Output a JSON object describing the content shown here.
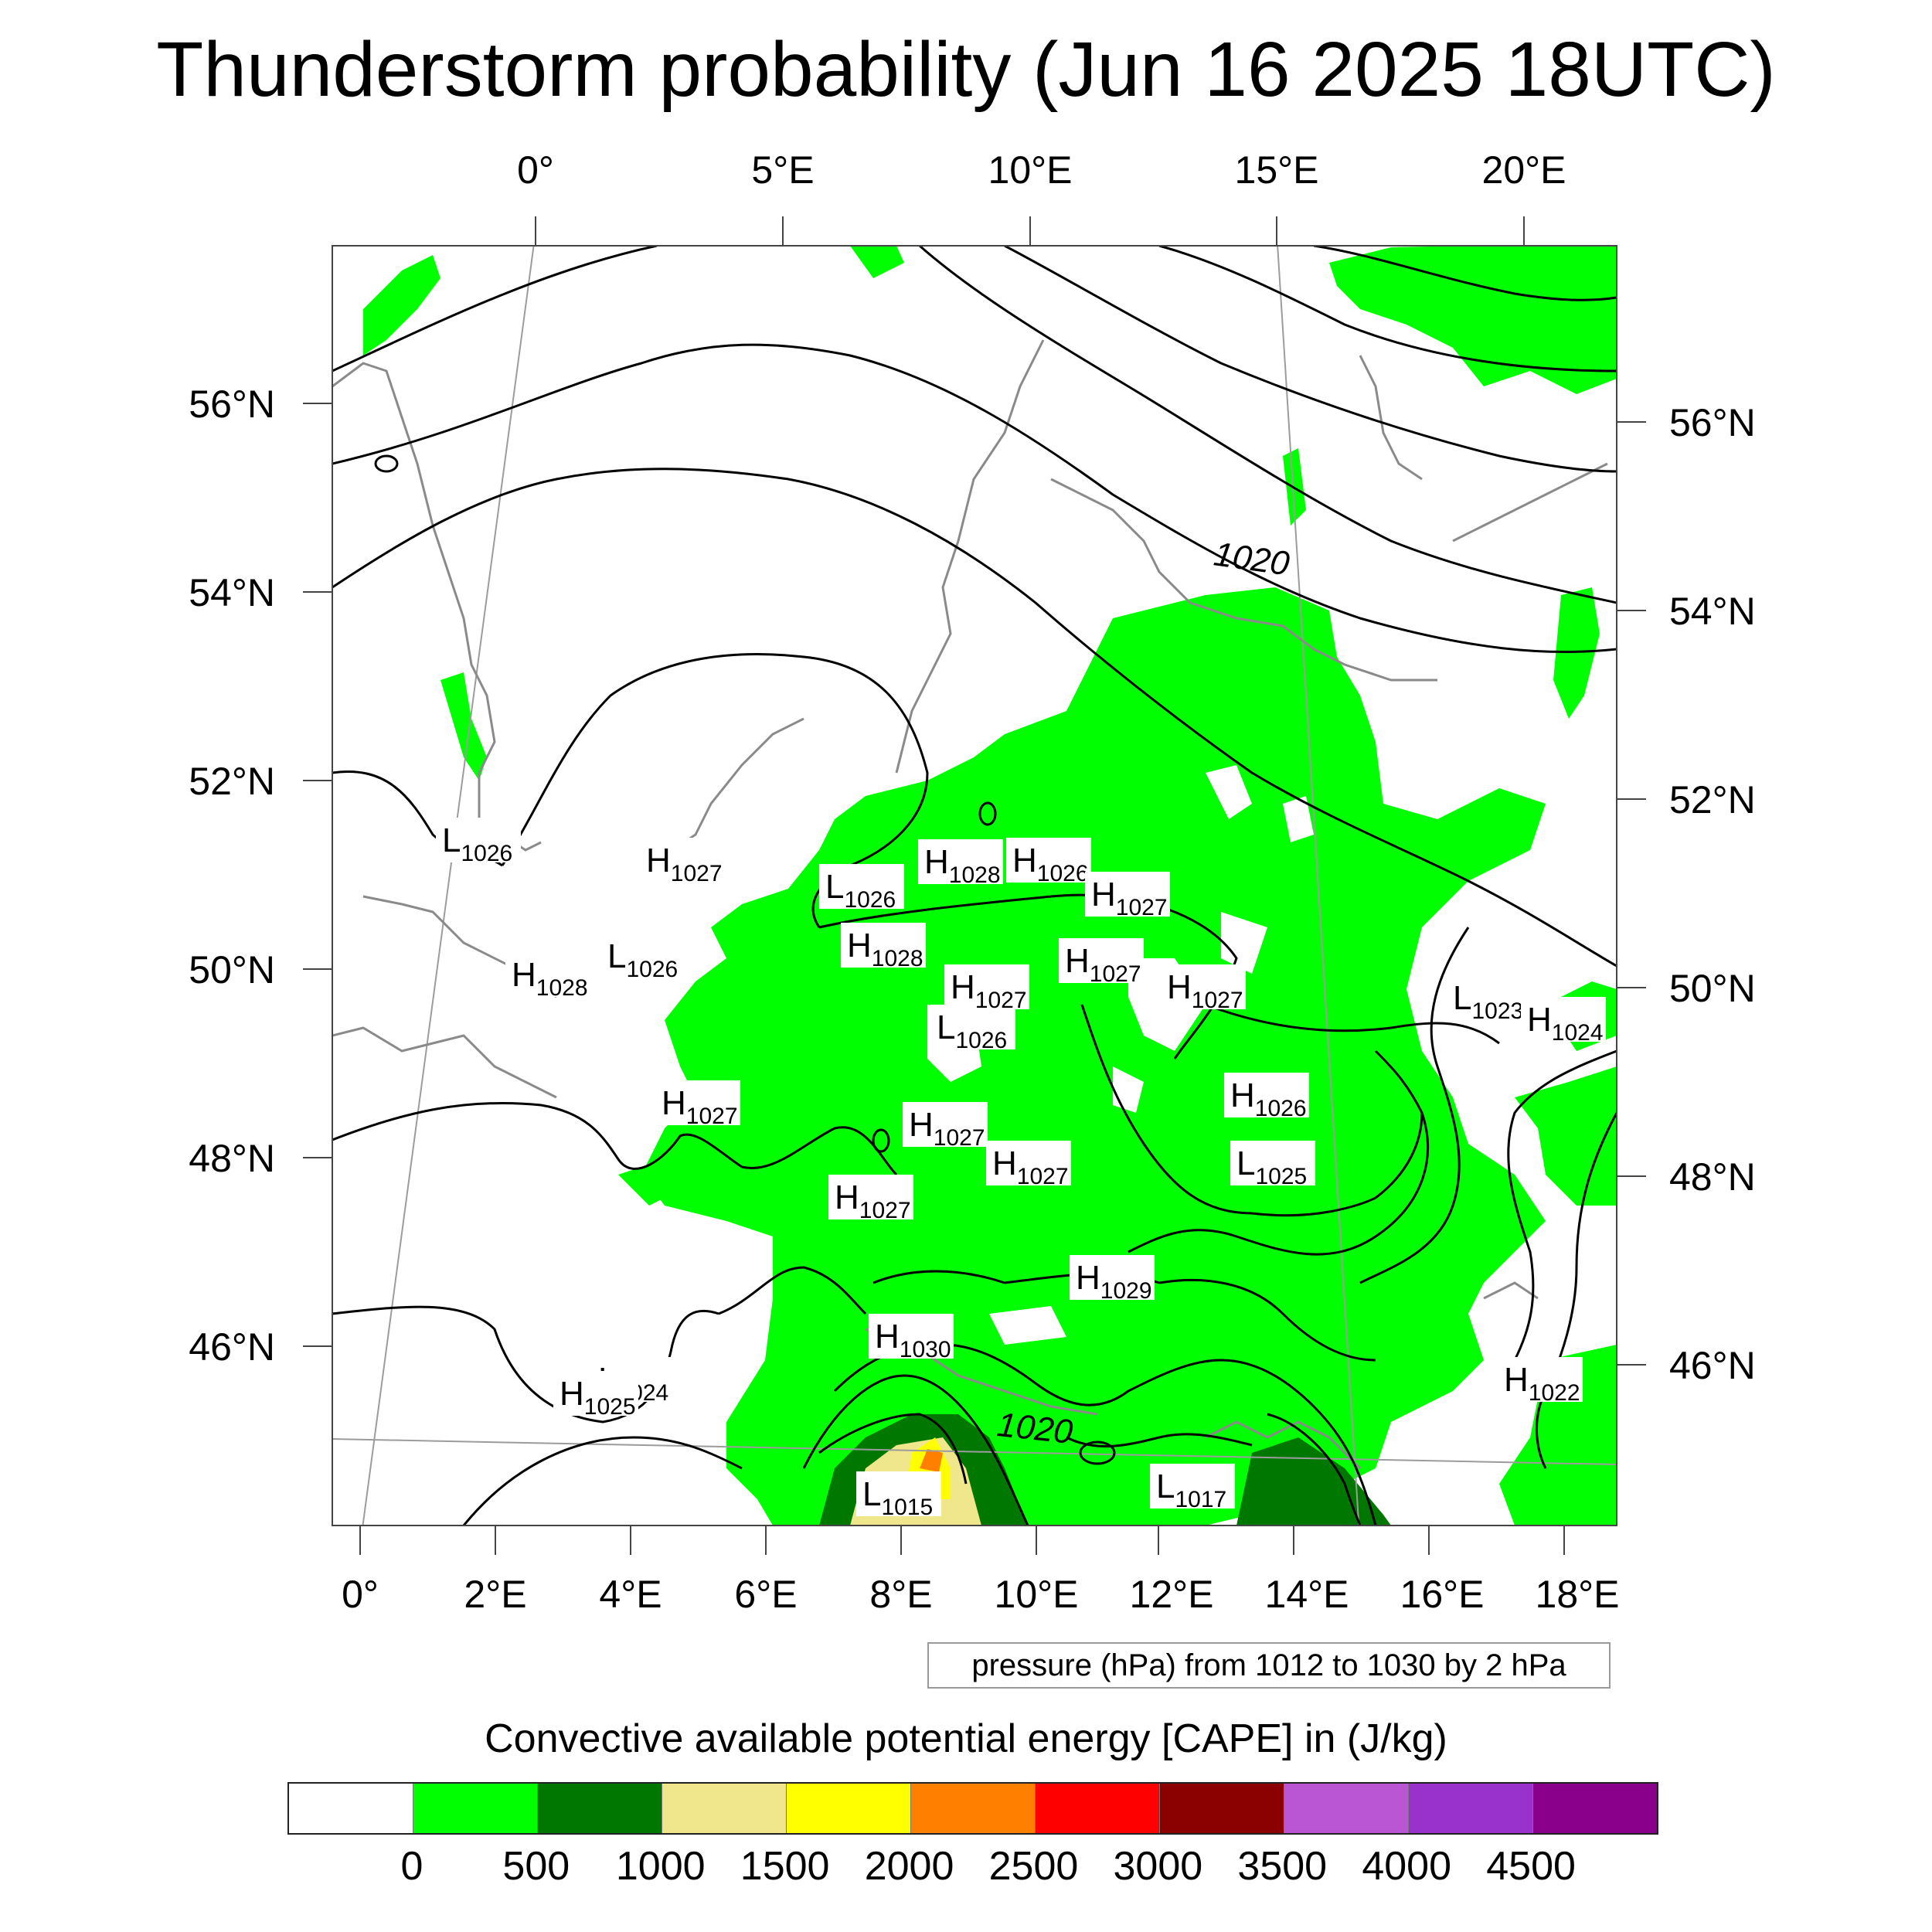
{
  "title": "Thunderstorm probability (Jun 16 2025 18UTC)",
  "map": {
    "top_lon_labels": [
      "0°",
      "5°E",
      "10°E",
      "15°E",
      "20°E"
    ],
    "bottom_lon_labels": [
      "0°",
      "2°E",
      "4°E",
      "6°E",
      "8°E",
      "10°E",
      "12°E",
      "14°E",
      "16°E",
      "18°E"
    ],
    "left_lat_labels": [
      "56°N",
      "54°N",
      "52°N",
      "50°N",
      "48°N",
      "46°N"
    ],
    "right_lat_labels": [
      "56°N",
      "54°N",
      "52°N",
      "50°N",
      "48°N",
      "46°N"
    ],
    "contour_labels": [
      "1020",
      "1020"
    ],
    "pressure_centers": [
      {
        "type": "L",
        "value": "1026"
      },
      {
        "type": "H",
        "value": "1027"
      },
      {
        "type": "L",
        "value": "1026"
      },
      {
        "type": "H",
        "value": "1028"
      },
      {
        "type": "H",
        "value": "1026"
      },
      {
        "type": "H",
        "value": "1027"
      },
      {
        "type": "H",
        "value": "1028"
      },
      {
        "type": "H",
        "value": "1028"
      },
      {
        "type": "L",
        "value": "1026"
      },
      {
        "type": "H",
        "value": "1027"
      },
      {
        "type": "H",
        "value": "1027"
      },
      {
        "type": "H",
        "value": "1027"
      },
      {
        "type": "L",
        "value": "1026"
      },
      {
        "type": "L",
        "value": "1023"
      },
      {
        "type": "H",
        "value": "1024"
      },
      {
        "type": "H",
        "value": "1027"
      },
      {
        "type": "H",
        "value": "1026"
      },
      {
        "type": "H",
        "value": "1027"
      },
      {
        "type": "L",
        "value": "1025"
      },
      {
        "type": "H",
        "value": "1027"
      },
      {
        "type": "H",
        "value": "1027"
      },
      {
        "type": "H",
        "value": "1029"
      },
      {
        "type": "H",
        "value": "1030"
      },
      {
        "type": "L",
        "value": "1024"
      },
      {
        "type": "H",
        "value": "1025"
      },
      {
        "type": "H",
        "value": "1022"
      },
      {
        "type": "L",
        "value": "1015"
      },
      {
        "type": "L",
        "value": "1017"
      }
    ]
  },
  "pressure_note": "pressure (hPa) from 1012 to 1030 by 2 hPa",
  "colorbar": {
    "title": "Convective available potential energy [CAPE] in (J/kg)",
    "colors": [
      "#ffffff",
      "#00ff00",
      "#007800",
      "#f0e68c",
      "#ffff00",
      "#ff8000",
      "#ff0000",
      "#8b0000",
      "#ba55d3",
      "#9932cc",
      "#8b008b"
    ],
    "labels": [
      "0",
      "500",
      "1000",
      "1500",
      "2000",
      "2500",
      "3000",
      "3500",
      "4000",
      "4500"
    ]
  }
}
